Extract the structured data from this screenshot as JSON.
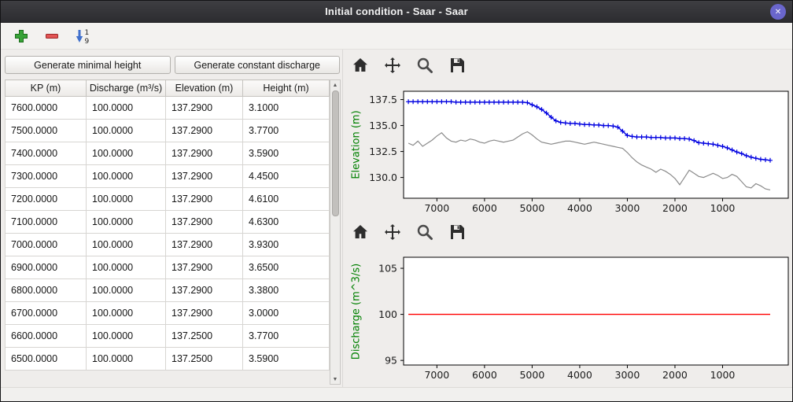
{
  "window": {
    "title": "Initial condition - Saar - Saar",
    "close_glyph": "✕"
  },
  "main_toolbar": {
    "sort_top": "1",
    "sort_bottom": "9",
    "icons": [
      "add-row-icon",
      "remove-row-icon",
      "sort-1-9-icon"
    ]
  },
  "scrollbar": {
    "up_glyph": "▲",
    "down_glyph": "▼"
  },
  "left_panel": {
    "generate_minimal_height_label": "Generate minimal height",
    "generate_constant_discharge_label": "Generate constant discharge",
    "table": {
      "columns": [
        "KP (m)",
        "Discharge (m³/s)",
        "Elevation (m)",
        "Height (m)"
      ],
      "rows": [
        [
          "7600.0000",
          "100.0000",
          "137.2900",
          "3.1000"
        ],
        [
          "7500.0000",
          "100.0000",
          "137.2900",
          "3.7700"
        ],
        [
          "7400.0000",
          "100.0000",
          "137.2900",
          "3.5900"
        ],
        [
          "7300.0000",
          "100.0000",
          "137.2900",
          "4.4500"
        ],
        [
          "7200.0000",
          "100.0000",
          "137.2900",
          "4.6100"
        ],
        [
          "7100.0000",
          "100.0000",
          "137.2900",
          "4.6300"
        ],
        [
          "7000.0000",
          "100.0000",
          "137.2900",
          "3.9300"
        ],
        [
          "6900.0000",
          "100.0000",
          "137.2900",
          "3.6500"
        ],
        [
          "6800.0000",
          "100.0000",
          "137.2900",
          "3.3800"
        ],
        [
          "6700.0000",
          "100.0000",
          "137.2900",
          "3.0000"
        ],
        [
          "6600.0000",
          "100.0000",
          "137.2500",
          "3.7700"
        ],
        [
          "6500.0000",
          "100.0000",
          "137.2500",
          "3.5900"
        ]
      ]
    }
  },
  "plot_toolbar_icons": [
    "home",
    "pan",
    "zoom",
    "save"
  ],
  "chart_data": [
    {
      "type": "line",
      "title": "",
      "ylabel": "Elevation (m)",
      "ylabel_color": "#008000",
      "xlim": [
        7700,
        -380
      ],
      "ylim": [
        128.0,
        138.3
      ],
      "x_axis_inverted": true,
      "grid": false,
      "xticks": [
        7000,
        6000,
        5000,
        4000,
        3000,
        2000,
        1000
      ],
      "yticks": [
        130.0,
        132.5,
        135.0,
        137.5
      ],
      "ytick_labels": [
        "130.0",
        "132.5",
        "135.0",
        "137.5"
      ],
      "series": [
        {
          "name": "water-surface-elevation",
          "color": "#0000e0",
          "line_width": 1.4,
          "marker": "plus",
          "x": [
            7600,
            7500,
            7400,
            7300,
            7200,
            7100,
            7000,
            6900,
            6800,
            6700,
            6600,
            6500,
            6400,
            6300,
            6200,
            6100,
            6000,
            5900,
            5800,
            5700,
            5600,
            5500,
            5400,
            5300,
            5200,
            5100,
            5000,
            4900,
            4800,
            4700,
            4600,
            4500,
            4400,
            4300,
            4200,
            4100,
            4000,
            3900,
            3800,
            3700,
            3600,
            3500,
            3400,
            3300,
            3200,
            3100,
            3000,
            2900,
            2800,
            2700,
            2600,
            2500,
            2400,
            2300,
            2200,
            2100,
            2000,
            1900,
            1800,
            1700,
            1600,
            1500,
            1400,
            1300,
            1200,
            1100,
            1000,
            900,
            800,
            700,
            600,
            500,
            400,
            300,
            200,
            100,
            0
          ],
          "y": [
            137.29,
            137.29,
            137.29,
            137.29,
            137.29,
            137.29,
            137.29,
            137.29,
            137.29,
            137.29,
            137.25,
            137.25,
            137.25,
            137.25,
            137.25,
            137.25,
            137.25,
            137.25,
            137.25,
            137.25,
            137.25,
            137.25,
            137.25,
            137.25,
            137.25,
            137.2,
            137.0,
            136.8,
            136.55,
            136.2,
            135.8,
            135.45,
            135.3,
            135.25,
            135.2,
            135.2,
            135.15,
            135.1,
            135.1,
            135.05,
            135.05,
            135.0,
            135.0,
            134.95,
            134.85,
            134.45,
            134.05,
            133.95,
            133.9,
            133.9,
            133.9,
            133.85,
            133.85,
            133.85,
            133.8,
            133.8,
            133.8,
            133.75,
            133.75,
            133.7,
            133.55,
            133.35,
            133.3,
            133.25,
            133.2,
            133.1,
            133.0,
            132.85,
            132.65,
            132.45,
            132.3,
            132.1,
            131.95,
            131.85,
            131.75,
            131.7,
            131.65
          ]
        },
        {
          "name": "bed-elevation",
          "color": "#8a8a8a",
          "line_width": 1.2,
          "marker": "none",
          "x": [
            7600,
            7500,
            7400,
            7300,
            7200,
            7100,
            7000,
            6900,
            6800,
            6700,
            6600,
            6500,
            6400,
            6300,
            6200,
            6100,
            6000,
            5900,
            5800,
            5700,
            5600,
            5500,
            5400,
            5300,
            5200,
            5100,
            5000,
            4900,
            4800,
            4700,
            4600,
            4500,
            4400,
            4300,
            4200,
            4100,
            4000,
            3900,
            3800,
            3700,
            3600,
            3500,
            3400,
            3300,
            3200,
            3100,
            3000,
            2900,
            2800,
            2700,
            2600,
            2500,
            2400,
            2300,
            2200,
            2100,
            2000,
            1900,
            1800,
            1700,
            1600,
            1500,
            1400,
            1300,
            1200,
            1100,
            1000,
            900,
            800,
            700,
            600,
            500,
            400,
            300,
            200,
            100,
            0
          ],
          "y": [
            133.3,
            133.1,
            133.5,
            133.0,
            133.3,
            133.6,
            134.0,
            134.3,
            133.8,
            133.5,
            133.4,
            133.6,
            133.5,
            133.7,
            133.6,
            133.4,
            133.3,
            133.5,
            133.6,
            133.5,
            133.4,
            133.5,
            133.6,
            133.9,
            134.2,
            134.4,
            134.1,
            133.7,
            133.4,
            133.3,
            133.2,
            133.3,
            133.4,
            133.5,
            133.5,
            133.4,
            133.3,
            133.2,
            133.3,
            133.4,
            133.3,
            133.2,
            133.1,
            133.0,
            132.9,
            132.8,
            132.4,
            131.9,
            131.5,
            131.2,
            131.0,
            130.8,
            130.5,
            130.8,
            130.6,
            130.3,
            129.9,
            129.3,
            130.0,
            130.7,
            130.4,
            130.1,
            130.0,
            130.2,
            130.4,
            130.2,
            129.9,
            130.0,
            130.3,
            130.1,
            129.6,
            129.1,
            129.0,
            129.4,
            129.2,
            128.9,
            128.8
          ]
        }
      ]
    },
    {
      "type": "line",
      "title": "",
      "ylabel": "Discharge (m^3/s)",
      "ylabel_color": "#008000",
      "xlim": [
        7700,
        -380
      ],
      "ylim": [
        94.5,
        106.2
      ],
      "x_axis_inverted": true,
      "grid": false,
      "xticks": [
        7000,
        6000,
        5000,
        4000,
        3000,
        2000,
        1000
      ],
      "yticks": [
        95,
        100,
        105
      ],
      "ytick_labels": [
        "95",
        "100",
        "105"
      ],
      "series": [
        {
          "name": "constant-discharge",
          "color": "#ff0000",
          "line_width": 1.4,
          "marker": "none",
          "x": [
            7600,
            0
          ],
          "y": [
            100,
            100
          ]
        }
      ]
    }
  ]
}
